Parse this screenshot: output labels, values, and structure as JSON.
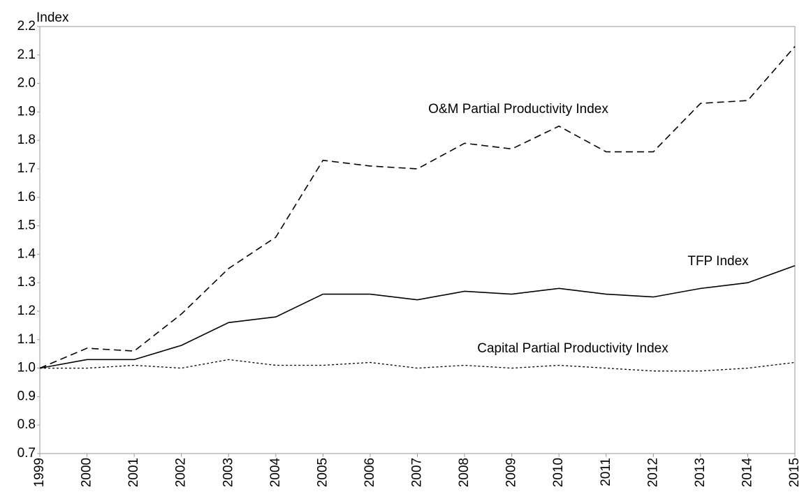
{
  "chart_data": {
    "type": "line",
    "y_label": "Index",
    "categories": [
      "1999",
      "2000",
      "2001",
      "2002",
      "2003",
      "2004",
      "2005",
      "2006",
      "2007",
      "2008",
      "2009",
      "2010",
      "2011",
      "2012",
      "2013",
      "2014",
      "2015"
    ],
    "series": [
      {
        "name": "O&M Partial Productivity Index",
        "color": "#000000",
        "dash": "dashed",
        "values": [
          1.0,
          1.07,
          1.06,
          1.19,
          1.35,
          1.46,
          1.73,
          1.71,
          1.7,
          1.79,
          1.77,
          1.85,
          1.76,
          1.76,
          1.93,
          1.94,
          2.13
        ]
      },
      {
        "name": "TFP Index",
        "color": "#000000",
        "dash": "solid",
        "values": [
          1.0,
          1.03,
          1.03,
          1.08,
          1.16,
          1.18,
          1.26,
          1.26,
          1.24,
          1.27,
          1.26,
          1.28,
          1.26,
          1.25,
          1.28,
          1.3,
          1.36
        ]
      },
      {
        "name": "Capital Partial Productivity Index",
        "color": "#000000",
        "dash": "dotted",
        "values": [
          1.0,
          1.0,
          1.01,
          1.0,
          1.03,
          1.01,
          1.01,
          1.02,
          1.0,
          1.01,
          1.0,
          1.01,
          1.0,
          0.99,
          0.99,
          1.0,
          1.02
        ]
      }
    ],
    "ylim": [
      0.7,
      2.2
    ],
    "yticks": [
      0.7,
      0.8,
      0.9,
      {
        "value": 1.0,
        "label": "1.0"
      },
      1.1,
      1.2,
      1.3,
      1.4,
      1.5,
      1.6,
      1.7,
      1.8,
      1.9,
      {
        "value": 2.0,
        "label": "2.0"
      },
      2.1,
      2.2
    ],
    "grid": false
  }
}
